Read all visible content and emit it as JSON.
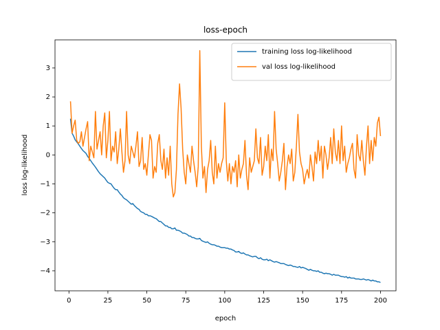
{
  "chart_data": {
    "type": "line",
    "title": "loss-epoch",
    "x_label": "epoch",
    "y_label": "loss log-likelihood",
    "x": [
      1,
      2,
      3,
      4,
      5,
      6,
      7,
      8,
      9,
      10,
      11,
      12,
      13,
      14,
      15,
      16,
      17,
      18,
      19,
      20,
      21,
      22,
      23,
      24,
      25,
      26,
      27,
      28,
      29,
      30,
      31,
      32,
      33,
      34,
      35,
      36,
      37,
      38,
      39,
      40,
      41,
      42,
      43,
      44,
      45,
      46,
      47,
      48,
      49,
      50,
      51,
      52,
      53,
      54,
      55,
      56,
      57,
      58,
      59,
      60,
      61,
      62,
      63,
      64,
      65,
      66,
      67,
      68,
      69,
      70,
      71,
      72,
      73,
      74,
      75,
      76,
      77,
      78,
      79,
      80,
      81,
      82,
      83,
      84,
      85,
      86,
      87,
      88,
      89,
      90,
      91,
      92,
      93,
      94,
      95,
      96,
      97,
      98,
      99,
      100,
      101,
      102,
      103,
      104,
      105,
      106,
      107,
      108,
      109,
      110,
      111,
      112,
      113,
      114,
      115,
      116,
      117,
      118,
      119,
      120,
      121,
      122,
      123,
      124,
      125,
      126,
      127,
      128,
      129,
      130,
      131,
      132,
      133,
      134,
      135,
      136,
      137,
      138,
      139,
      140,
      141,
      142,
      143,
      144,
      145,
      146,
      147,
      148,
      149,
      150,
      151,
      152,
      153,
      154,
      155,
      156,
      157,
      158,
      159,
      160,
      161,
      162,
      163,
      164,
      165,
      166,
      167,
      168,
      169,
      170,
      171,
      172,
      173,
      174,
      175,
      176,
      177,
      178,
      179,
      180,
      181,
      182,
      183,
      184,
      185,
      186,
      187,
      188,
      189,
      190,
      191,
      192,
      193,
      194,
      195,
      196,
      197,
      198,
      199,
      200
    ],
    "series": [
      {
        "name": "training loss log-likelihood",
        "color": "#1f77b4",
        "values": [
          1.25,
          0.75,
          0.65,
          0.52,
          0.45,
          0.38,
          0.3,
          0.22,
          0.15,
          0.1,
          0.05,
          -0.05,
          -0.12,
          -0.2,
          -0.28,
          -0.35,
          -0.42,
          -0.5,
          -0.58,
          -0.65,
          -0.7,
          -0.75,
          -0.8,
          -0.88,
          -0.95,
          -0.98,
          -1.0,
          -1.08,
          -1.15,
          -1.2,
          -1.2,
          -1.28,
          -1.35,
          -1.4,
          -1.48,
          -1.52,
          -1.55,
          -1.6,
          -1.65,
          -1.7,
          -1.68,
          -1.75,
          -1.8,
          -1.85,
          -1.88,
          -1.95,
          -1.98,
          -2.0,
          -2.05,
          -2.05,
          -2.1,
          -2.1,
          -2.12,
          -2.15,
          -2.18,
          -2.2,
          -2.25,
          -2.3,
          -2.3,
          -2.35,
          -2.4,
          -2.45,
          -2.45,
          -2.5,
          -2.5,
          -2.55,
          -2.55,
          -2.52,
          -2.6,
          -2.6,
          -2.62,
          -2.65,
          -2.7,
          -2.7,
          -2.72,
          -2.75,
          -2.8,
          -2.8,
          -2.85,
          -2.85,
          -2.88,
          -2.9,
          -2.9,
          -2.88,
          -2.95,
          -2.98,
          -3.0,
          -3.02,
          -3.0,
          -3.05,
          -3.08,
          -3.1,
          -3.1,
          -3.12,
          -3.15,
          -3.15,
          -3.18,
          -3.2,
          -3.2,
          -3.2,
          -3.22,
          -3.22,
          -3.25,
          -3.25,
          -3.28,
          -3.3,
          -3.35,
          -3.35,
          -3.33,
          -3.38,
          -3.4,
          -3.38,
          -3.42,
          -3.45,
          -3.45,
          -3.48,
          -3.5,
          -3.52,
          -3.5,
          -3.5,
          -3.55,
          -3.58,
          -3.55,
          -3.6,
          -3.62,
          -3.62,
          -3.6,
          -3.65,
          -3.62,
          -3.65,
          -3.68,
          -3.7,
          -3.68,
          -3.7,
          -3.72,
          -3.75,
          -3.75,
          -3.75,
          -3.78,
          -3.8,
          -3.82,
          -3.8,
          -3.82,
          -3.85,
          -3.85,
          -3.87,
          -3.88,
          -3.85,
          -3.9,
          -3.88,
          -3.9,
          -3.92,
          -3.95,
          -3.98,
          -3.95,
          -3.98,
          -4.0,
          -4.0,
          -4.02,
          -4.0,
          -4.05,
          -4.05,
          -4.08,
          -4.1,
          -4.08,
          -4.1,
          -4.1,
          -4.12,
          -4.15,
          -4.12,
          -4.15,
          -4.15,
          -4.15,
          -4.18,
          -4.2,
          -4.2,
          -4.22,
          -4.2,
          -4.25,
          -4.22,
          -4.25,
          -4.25,
          -4.25,
          -4.28,
          -4.28,
          -4.28,
          -4.3,
          -4.3,
          -4.28,
          -4.3,
          -4.32,
          -4.3,
          -4.32,
          -4.35,
          -4.32,
          -4.35,
          -4.35,
          -4.38,
          -4.38,
          -4.4
        ]
      },
      {
        "name": "val loss log-likelihood",
        "color": "#ff7f0e",
        "values": [
          1.85,
          0.75,
          1.0,
          1.2,
          0.5,
          0.4,
          0.45,
          0.8,
          0.3,
          0.6,
          0.9,
          1.15,
          -0.2,
          0.3,
          0.1,
          -0.1,
          1.5,
          0.2,
          0.5,
          0.8,
          0.0,
          1.0,
          1.45,
          -0.1,
          0.5,
          1.5,
          -0.2,
          0.3,
          0.1,
          0.8,
          -0.3,
          0.2,
          0.9,
          0.1,
          -0.6,
          -0.2,
          1.5,
          0.0,
          -0.3,
          0.3,
          0.1,
          -0.1,
          0.3,
          0.8,
          -0.4,
          -0.2,
          0.6,
          -0.5,
          -0.3,
          -0.7,
          0.0,
          0.7,
          0.5,
          -0.8,
          -0.4,
          -0.6,
          0.4,
          0.7,
          -0.2,
          -0.5,
          0.2,
          -0.8,
          -0.1,
          -0.7,
          0.3,
          -1.0,
          -1.45,
          -1.3,
          -0.5,
          1.4,
          2.45,
          1.6,
          0.2,
          -0.6,
          -1.0,
          0.0,
          -0.3,
          -0.6,
          0.3,
          -0.2,
          -0.6,
          -1.1,
          -0.4,
          3.6,
          0.3,
          -0.8,
          -0.4,
          -1.3,
          -0.5,
          -0.2,
          0.5,
          -0.6,
          -1.0,
          0.3,
          -0.8,
          -0.3,
          -0.6,
          -0.3,
          -0.1,
          1.8,
          -0.2,
          -0.9,
          -0.3,
          -1.0,
          -0.4,
          -0.6,
          -0.2,
          -1.1,
          0.0,
          -0.8,
          -0.5,
          -0.3,
          0.5,
          -0.7,
          -1.2,
          -0.1,
          -0.6,
          -0.4,
          -0.2,
          0.9,
          -0.1,
          -0.3,
          0.6,
          -0.7,
          -0.4,
          0.3,
          -0.2,
          0.7,
          -0.8,
          0.2,
          -0.2,
          1.5,
          0.2,
          -0.3,
          -0.9,
          -0.6,
          -0.2,
          0.4,
          -1.2,
          -0.4,
          0.0,
          -0.3,
          0.2,
          -0.9,
          -0.6,
          0.3,
          1.4,
          0.1,
          -0.3,
          -0.5,
          -1.0,
          -0.7,
          -0.5,
          -0.8,
          0.0,
          -0.4,
          -0.9,
          0.1,
          -0.3,
          0.5,
          -0.2,
          0.3,
          -0.8,
          0.3,
          0.0,
          -0.5,
          -0.1,
          0.6,
          -0.3,
          0.9,
          0.1,
          -0.2,
          0.5,
          -0.3,
          1.0,
          -0.2,
          0.3,
          -0.6,
          -0.3,
          -0.1,
          0.2,
          0.4,
          -0.5,
          -0.8,
          0.7,
          0.0,
          -0.2,
          0.5,
          -0.2,
          -0.7,
          0.3,
          1.0,
          -0.3,
          0.5,
          -0.2,
          0.6,
          0.3,
          1.1,
          1.3,
          0.65
        ]
      }
    ],
    "xlim": [
      -8.95,
      209.95
    ],
    "xticks": [
      0,
      25,
      50,
      75,
      100,
      125,
      150,
      175,
      200
    ],
    "ylim": [
      -4.69,
      3.97
    ],
    "yticks": [
      {
        "value": -4,
        "label": "−4"
      },
      {
        "value": -3,
        "label": "−3"
      },
      {
        "value": -2,
        "label": "−2"
      },
      {
        "value": -1,
        "label": "−1"
      },
      0,
      1,
      2,
      3
    ],
    "grid": false,
    "legend": "upper right"
  }
}
